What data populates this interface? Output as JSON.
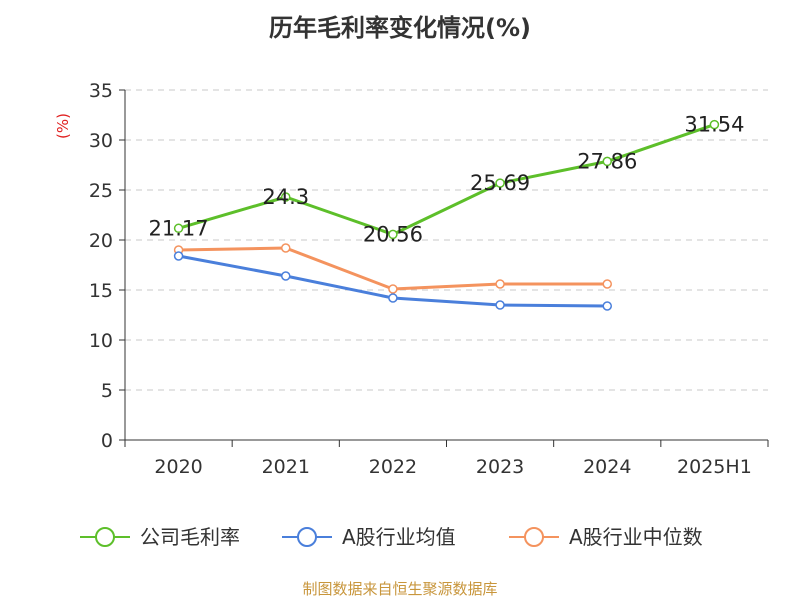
{
  "chart_data": {
    "type": "line",
    "title": "历年毛利率变化情况(%)",
    "ylabel": "(%)",
    "xlabel": "",
    "categories": [
      "2020",
      "2021",
      "2022",
      "2023",
      "2024",
      "2025H1"
    ],
    "ylim": [
      0,
      35
    ],
    "yticks": [
      0,
      5,
      10,
      15,
      20,
      25,
      30,
      35
    ],
    "grid": true,
    "legend_position": "bottom",
    "series": [
      {
        "name": "公司毛利率",
        "color": "#5dbf2a",
        "values": [
          21.17,
          24.3,
          20.56,
          25.69,
          27.86,
          31.54
        ],
        "labels": [
          "21.17",
          "24.3",
          "20.56",
          "25.69",
          "27.86",
          "31.54"
        ]
      },
      {
        "name": "A股行业均值",
        "color": "#4a7fdb",
        "values": [
          18.4,
          16.4,
          14.2,
          13.5,
          13.4,
          null
        ]
      },
      {
        "name": "A股行业中位数",
        "color": "#f4935e",
        "values": [
          19.0,
          19.2,
          15.1,
          15.6,
          15.6,
          null
        ]
      }
    ]
  },
  "source": "制图数据来自恒生聚源数据库"
}
